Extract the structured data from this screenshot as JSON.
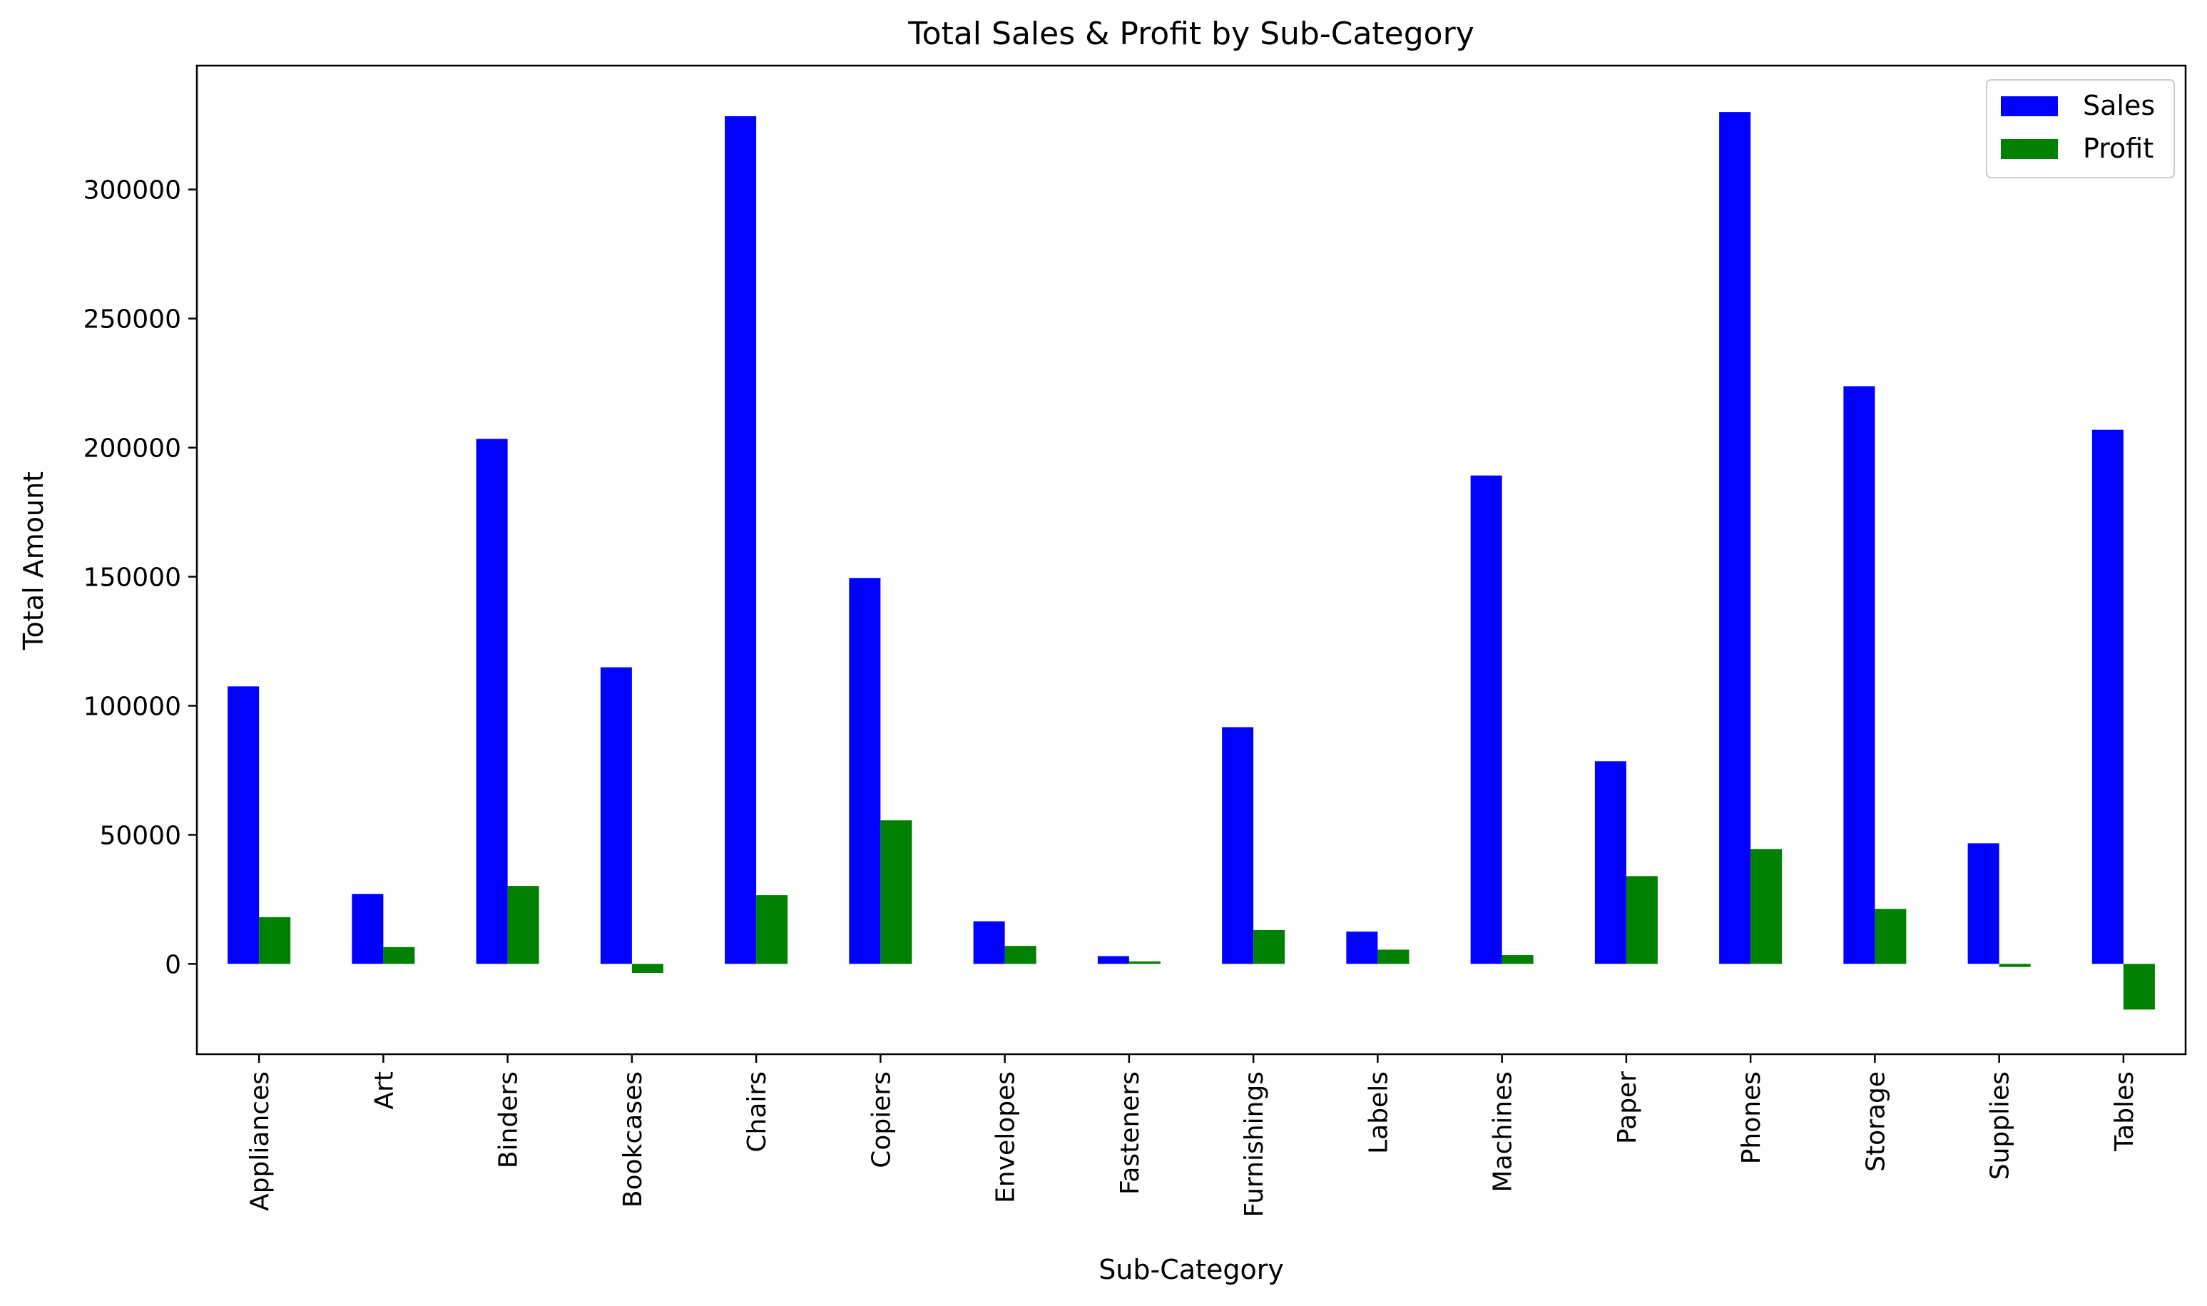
{
  "chart_data": {
    "type": "bar",
    "title": "Total Sales & Profit by Sub-Category",
    "xlabel": "Sub-Category",
    "ylabel": "Total Amount",
    "ylim": [
      -35000,
      348000
    ],
    "yticks": [
      0,
      50000,
      100000,
      150000,
      200000,
      250000,
      300000
    ],
    "categories": [
      "Appliances",
      "Art",
      "Binders",
      "Bookcases",
      "Chairs",
      "Copiers",
      "Envelopes",
      "Fasteners",
      "Furnishings",
      "Labels",
      "Machines",
      "Paper",
      "Phones",
      "Storage",
      "Supplies",
      "Tables"
    ],
    "series": [
      {
        "name": "Sales",
        "color": "#0000ff",
        "values": [
          107500,
          27100,
          203400,
          114900,
          328400,
          149500,
          16500,
          3000,
          91700,
          12500,
          189200,
          78500,
          330000,
          223800,
          46700,
          206900
        ]
      },
      {
        "name": "Profit",
        "color": "#008000",
        "values": [
          18100,
          6500,
          30200,
          -3500,
          26600,
          55600,
          6960,
          950,
          13100,
          5500,
          3400,
          34000,
          44500,
          21300,
          -1200,
          -17700
        ]
      }
    ],
    "legend_position": "top-right",
    "grid": false
  }
}
